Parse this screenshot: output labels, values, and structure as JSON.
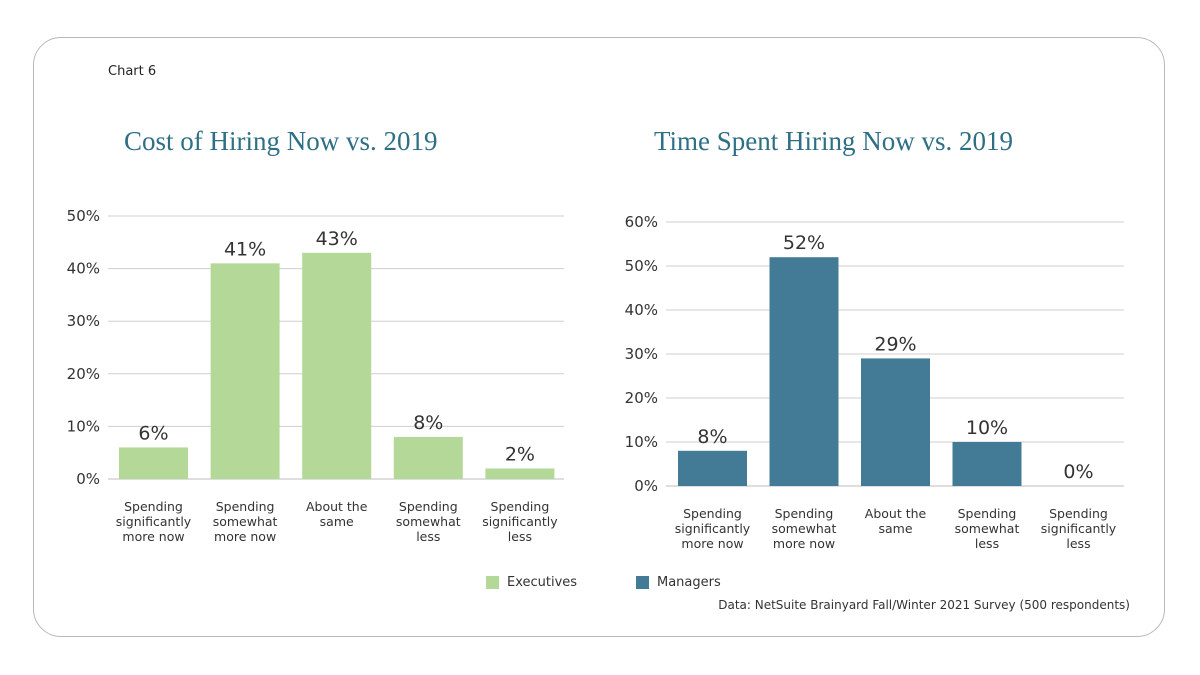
{
  "header": {
    "chart_label": "Chart 6"
  },
  "colors": {
    "executives": "#b3d898",
    "managers": "#437b96",
    "title": "#2f6f85",
    "grid": "#cfcfcf"
  },
  "chart_data": [
    {
      "type": "bar",
      "title": "Cost of Hiring Now vs. 2019",
      "categories": [
        [
          "Spending",
          "significantly",
          "more now"
        ],
        [
          "Spending",
          "somewhat",
          "more now"
        ],
        [
          "About the",
          "same"
        ],
        [
          "Spending",
          "somewhat",
          "less"
        ],
        [
          "Spending",
          "significantly",
          "less"
        ]
      ],
      "series": [
        {
          "name": "Executives",
          "values": [
            6,
            41,
            43,
            8,
            2
          ]
        }
      ],
      "data_labels": [
        "6%",
        "41%",
        "43%",
        "8%",
        "2%"
      ],
      "y_ticks": [
        "0%",
        "10%",
        "20%",
        "30%",
        "40%",
        "50%"
      ],
      "ylim": [
        0,
        50
      ],
      "grid": true,
      "legend": "bottom"
    },
    {
      "type": "bar",
      "title": "Time Spent Hiring Now vs. 2019",
      "categories": [
        [
          "Spending",
          "significantly",
          "more now"
        ],
        [
          "Spending",
          "somewhat",
          "more now"
        ],
        [
          "About the",
          "same"
        ],
        [
          "Spending",
          "somewhat",
          "less"
        ],
        [
          "Spending",
          "significantly",
          "less"
        ]
      ],
      "series": [
        {
          "name": "Managers",
          "values": [
            8,
            52,
            29,
            10,
            0
          ]
        }
      ],
      "data_labels": [
        "8%",
        "52%",
        "29%",
        "10%",
        "0%"
      ],
      "y_ticks": [
        "0%",
        "10%",
        "20%",
        "30%",
        "40%",
        "50%",
        "60%"
      ],
      "ylim": [
        0,
        60
      ],
      "grid": true,
      "legend": "bottom"
    }
  ],
  "footer": {
    "source": "Data: NetSuite Brainyard Fall/Winter 2021 Survey (500 respondents)"
  }
}
